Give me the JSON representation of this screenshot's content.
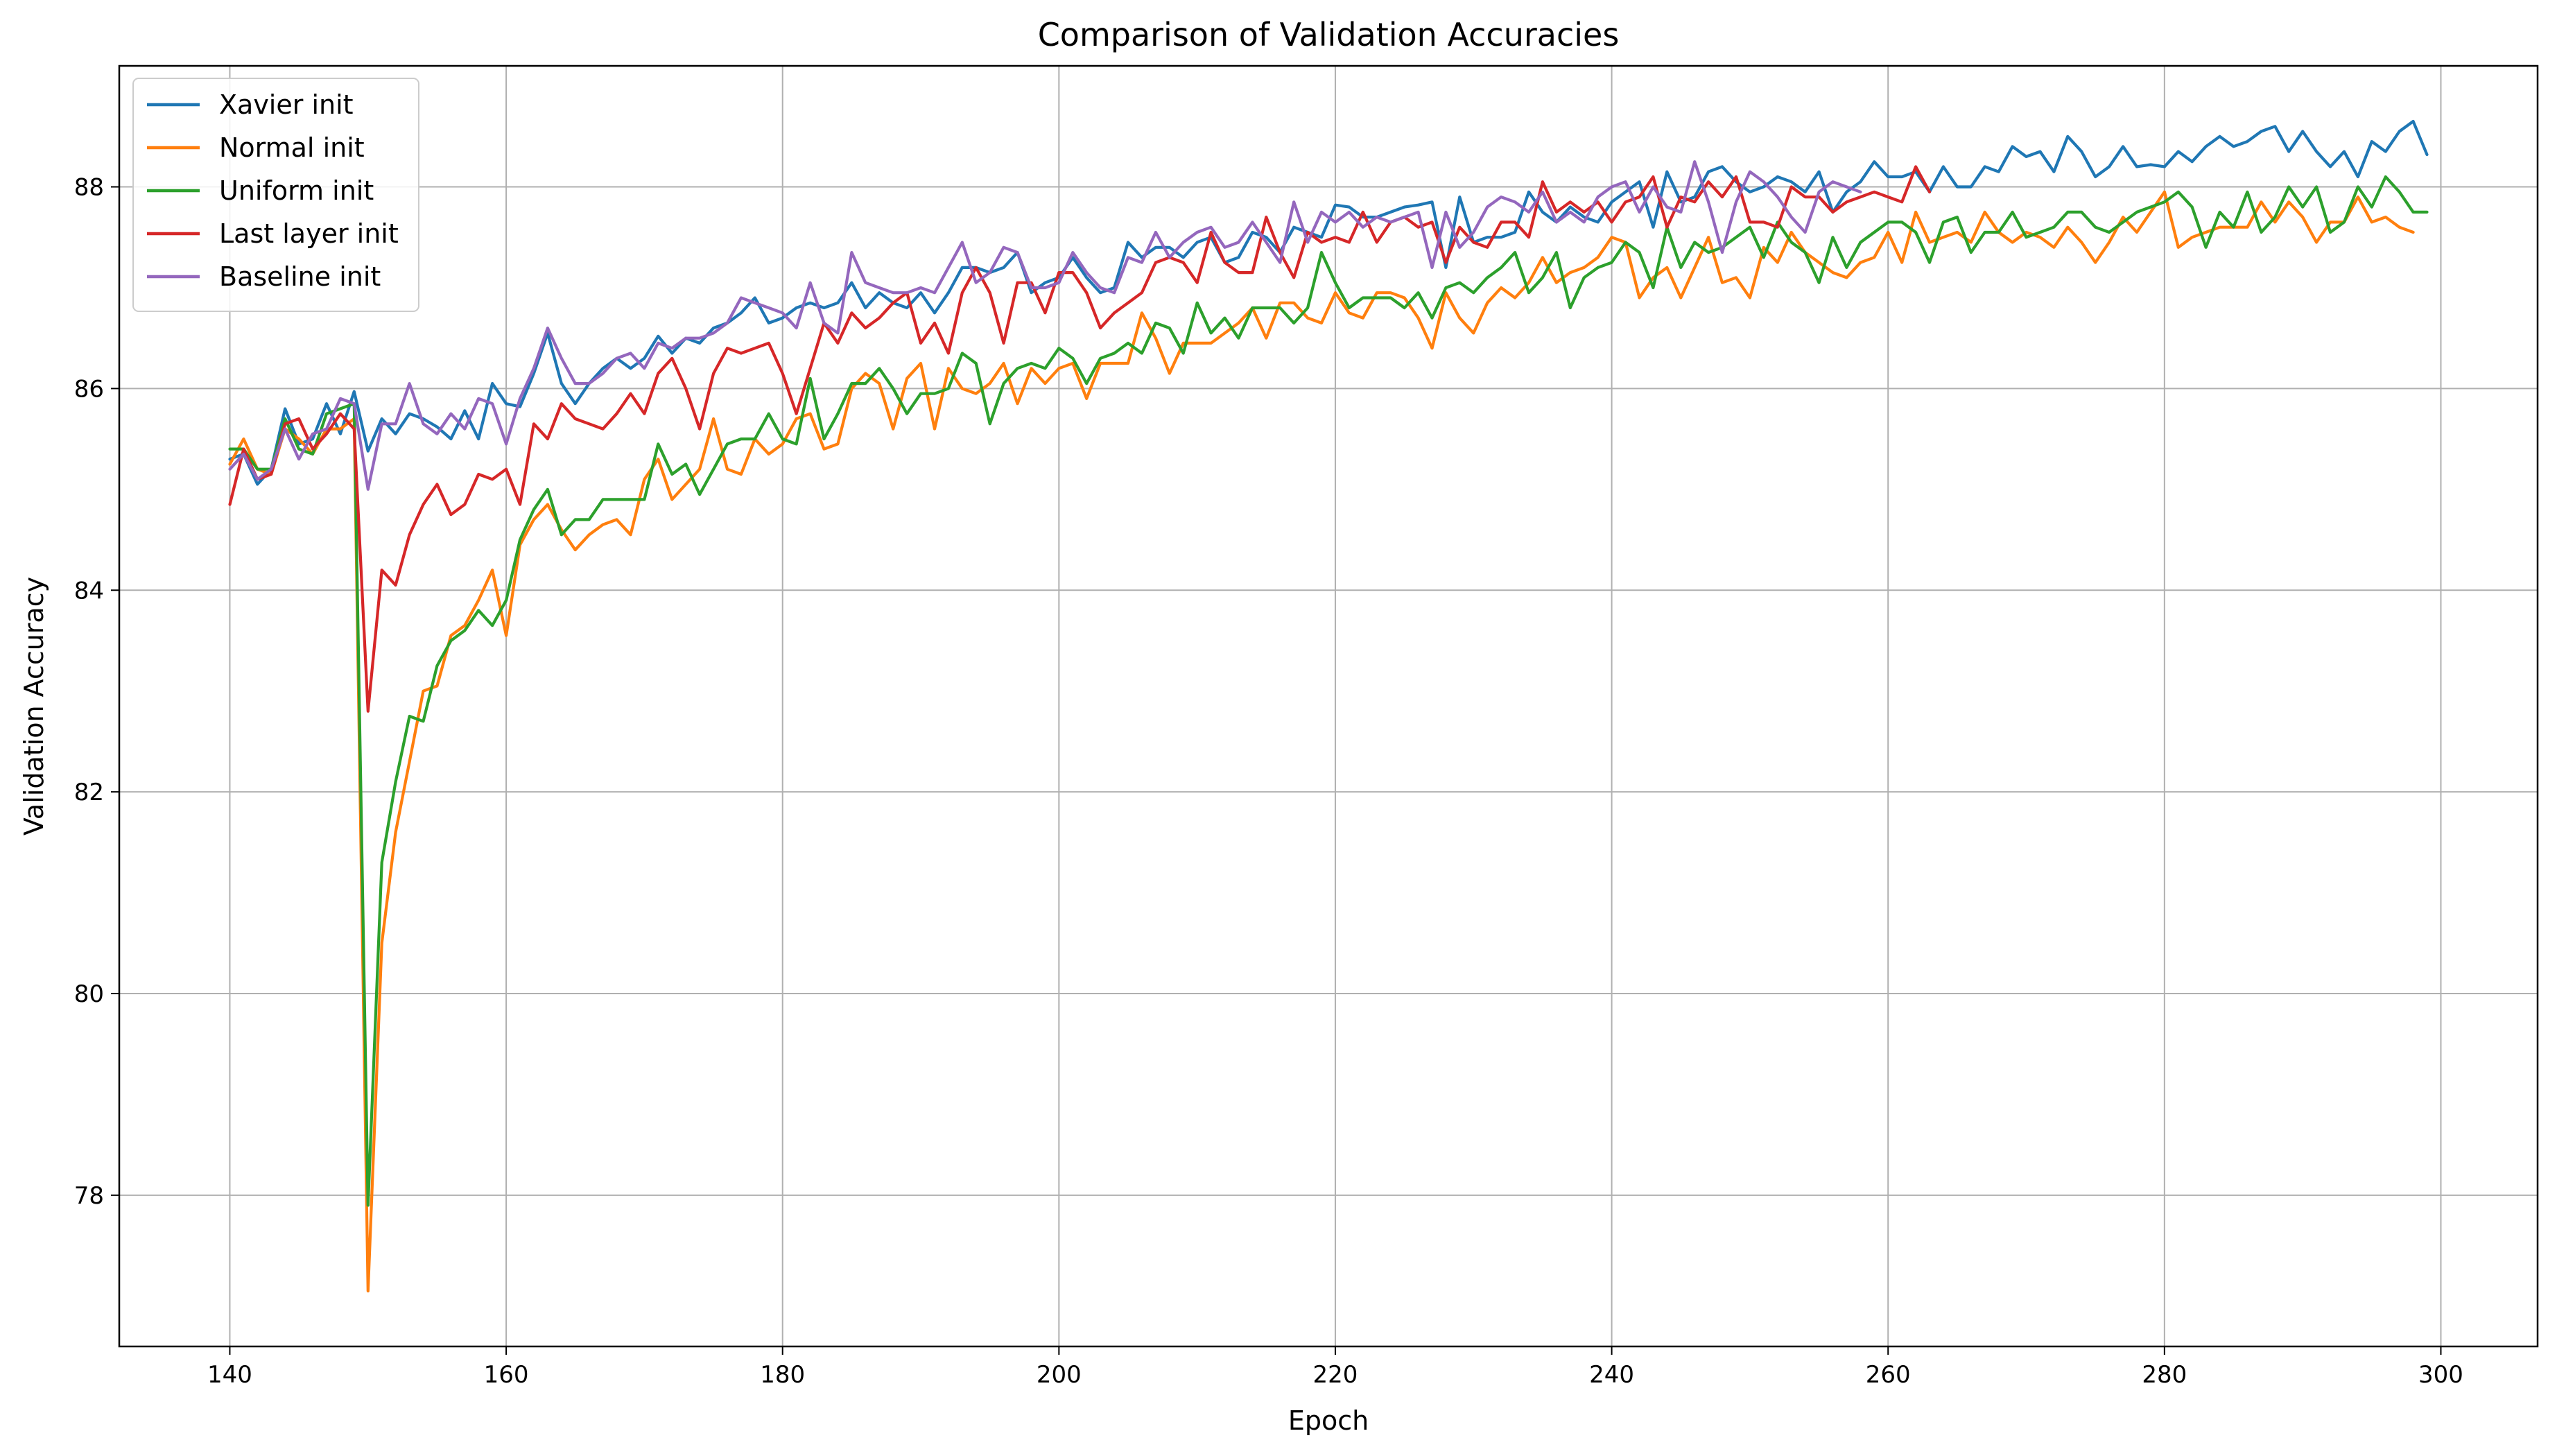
{
  "chart_data": {
    "type": "line",
    "title": "Comparison of Validation Accuracies",
    "xlabel": "Epoch",
    "ylabel": "Validation Accuracy",
    "xlim": [
      132,
      307
    ],
    "ylim": [
      76.5,
      89.2
    ],
    "xticks": [
      140,
      160,
      180,
      200,
      220,
      240,
      260,
      280,
      300
    ],
    "yticks": [
      78,
      80,
      82,
      84,
      86,
      88
    ],
    "grid": true,
    "legend_position": "top-left",
    "series": [
      {
        "name": "Xavier init",
        "color": "#1f77b4",
        "x_start": 140,
        "values": [
          85.3,
          85.35,
          85.05,
          85.2,
          85.8,
          85.45,
          85.5,
          85.85,
          85.55,
          85.97,
          85.38,
          85.7,
          85.55,
          85.75,
          85.7,
          85.62,
          85.5,
          85.78,
          85.5,
          86.05,
          85.85,
          85.82,
          86.15,
          86.55,
          86.05,
          85.85,
          86.05,
          86.2,
          86.3,
          86.2,
          86.3,
          86.52,
          86.35,
          86.5,
          86.45,
          86.6,
          86.65,
          86.75,
          86.9,
          86.65,
          86.7,
          86.8,
          86.85,
          86.8,
          86.85,
          87.05,
          86.8,
          86.95,
          86.85,
          86.8,
          86.95,
          86.75,
          86.95,
          87.2,
          87.2,
          87.15,
          87.2,
          87.35,
          86.95,
          87.05,
          87.1,
          87.3,
          87.1,
          86.95,
          87.0,
          87.45,
          87.3,
          87.4,
          87.4,
          87.3,
          87.45,
          87.5,
          87.25,
          87.3,
          87.55,
          87.5,
          87.35,
          87.6,
          87.55,
          87.5,
          87.82,
          87.8,
          87.7,
          87.7,
          87.75,
          87.8,
          87.82,
          87.85,
          87.2,
          87.9,
          87.45,
          87.5,
          87.5,
          87.55,
          87.95,
          87.75,
          87.65,
          87.8,
          87.7,
          87.65,
          87.85,
          87.95,
          88.05,
          87.6,
          88.15,
          87.85,
          87.9,
          88.15,
          88.2,
          88.05,
          87.95,
          88.0,
          88.1,
          88.05,
          87.95,
          88.15,
          87.75,
          87.95,
          88.05,
          88.25,
          88.1,
          88.1,
          88.15,
          87.95,
          88.2,
          88.0,
          88.0,
          88.2,
          88.15,
          88.4,
          88.3,
          88.35,
          88.15,
          88.5,
          88.35,
          88.1,
          88.2,
          88.4,
          88.2,
          88.22,
          88.2,
          88.35,
          88.25,
          88.4,
          88.5,
          88.4,
          88.45,
          88.55,
          88.6,
          88.35,
          88.55,
          88.35,
          88.2,
          88.35,
          88.1,
          88.45,
          88.35,
          88.55,
          88.65,
          88.32
        ]
      },
      {
        "name": "Normal init",
        "color": "#ff7f0e",
        "x_start": 140,
        "values": [
          85.25,
          85.5,
          85.2,
          85.15,
          85.6,
          85.5,
          85.35,
          85.6,
          85.6,
          85.7,
          77.05,
          80.5,
          81.6,
          82.3,
          83.0,
          83.05,
          83.55,
          83.65,
          83.9,
          84.2,
          83.55,
          84.45,
          84.7,
          84.85,
          84.6,
          84.4,
          84.55,
          84.65,
          84.7,
          84.55,
          85.1,
          85.3,
          84.9,
          85.05,
          85.2,
          85.7,
          85.2,
          85.15,
          85.5,
          85.35,
          85.45,
          85.7,
          85.75,
          85.4,
          85.45,
          86.0,
          86.15,
          86.05,
          85.6,
          86.1,
          86.25,
          85.6,
          86.2,
          86.0,
          85.95,
          86.05,
          86.25,
          85.85,
          86.2,
          86.05,
          86.2,
          86.25,
          85.9,
          86.25,
          86.25,
          86.25,
          86.75,
          86.5,
          86.15,
          86.45,
          86.45,
          86.45,
          86.55,
          86.65,
          86.8,
          86.5,
          86.85,
          86.85,
          86.7,
          86.65,
          86.95,
          86.75,
          86.7,
          86.95,
          86.95,
          86.9,
          86.7,
          86.4,
          86.95,
          86.7,
          86.55,
          86.85,
          87.0,
          86.9,
          87.05,
          87.3,
          87.05,
          87.15,
          87.2,
          87.3,
          87.5,
          87.45,
          86.9,
          87.1,
          87.2,
          86.9,
          87.2,
          87.5,
          87.05,
          87.1,
          86.9,
          87.4,
          87.25,
          87.55,
          87.35,
          87.25,
          87.15,
          87.1,
          87.25,
          87.3,
          87.55,
          87.25,
          87.75,
          87.45,
          87.5,
          87.55,
          87.45,
          87.75,
          87.55,
          87.45,
          87.55,
          87.5,
          87.4,
          87.6,
          87.45,
          87.25,
          87.45,
          87.7,
          87.55,
          87.75,
          87.95,
          87.4,
          87.5,
          87.55,
          87.6,
          87.6,
          87.6,
          87.85,
          87.65,
          87.85,
          87.7,
          87.45,
          87.65,
          87.65,
          87.9,
          87.65,
          87.7,
          87.6,
          87.55
        ]
      },
      {
        "name": "Uniform init",
        "color": "#2ca02c",
        "x_start": 140,
        "values": [
          85.4,
          85.4,
          85.2,
          85.2,
          85.7,
          85.4,
          85.35,
          85.75,
          85.8,
          85.85,
          77.9,
          81.3,
          82.1,
          82.75,
          82.7,
          83.25,
          83.5,
          83.6,
          83.8,
          83.65,
          83.9,
          84.5,
          84.8,
          85.0,
          84.55,
          84.7,
          84.7,
          84.9,
          84.9,
          84.9,
          84.9,
          85.45,
          85.15,
          85.25,
          84.95,
          85.2,
          85.45,
          85.5,
          85.5,
          85.75,
          85.5,
          85.45,
          86.1,
          85.5,
          85.75,
          86.05,
          86.05,
          86.2,
          86.0,
          85.75,
          85.95,
          85.95,
          86.0,
          86.35,
          86.25,
          85.65,
          86.05,
          86.2,
          86.25,
          86.2,
          86.4,
          86.3,
          86.05,
          86.3,
          86.35,
          86.45,
          86.35,
          86.65,
          86.6,
          86.35,
          86.85,
          86.55,
          86.7,
          86.5,
          86.8,
          86.8,
          86.8,
          86.65,
          86.8,
          87.35,
          87.05,
          86.8,
          86.9,
          86.9,
          86.9,
          86.8,
          86.95,
          86.7,
          87.0,
          87.05,
          86.95,
          87.1,
          87.2,
          87.35,
          86.95,
          87.1,
          87.35,
          86.8,
          87.1,
          87.2,
          87.25,
          87.45,
          87.35,
          87.0,
          87.6,
          87.2,
          87.45,
          87.35,
          87.4,
          87.5,
          87.6,
          87.3,
          87.65,
          87.45,
          87.35,
          87.05,
          87.5,
          87.2,
          87.45,
          87.55,
          87.65,
          87.65,
          87.55,
          87.25,
          87.65,
          87.7,
          87.35,
          87.55,
          87.55,
          87.75,
          87.5,
          87.55,
          87.6,
          87.75,
          87.75,
          87.6,
          87.55,
          87.65,
          87.75,
          87.8,
          87.85,
          87.95,
          87.8,
          87.4,
          87.75,
          87.6,
          87.95,
          87.55,
          87.7,
          88.0,
          87.8,
          88.0,
          87.55,
          87.65,
          88.0,
          87.8,
          88.1,
          87.95,
          87.75,
          87.75
        ]
      },
      {
        "name": "Last layer init",
        "color": "#d62728",
        "x_start": 140,
        "values": [
          84.85,
          85.4,
          85.1,
          85.15,
          85.65,
          85.7,
          85.4,
          85.55,
          85.75,
          85.6,
          82.8,
          84.2,
          84.05,
          84.55,
          84.85,
          85.05,
          84.75,
          84.85,
          85.15,
          85.1,
          85.2,
          84.85,
          85.65,
          85.5,
          85.85,
          85.7,
          85.65,
          85.6,
          85.75,
          85.95,
          85.75,
          86.15,
          86.3,
          86.0,
          85.6,
          86.15,
          86.4,
          86.35,
          86.4,
          86.45,
          86.15,
          85.75,
          86.2,
          86.65,
          86.45,
          86.75,
          86.6,
          86.7,
          86.85,
          86.95,
          86.45,
          86.65,
          86.35,
          86.95,
          87.2,
          86.95,
          86.45,
          87.05,
          87.05,
          86.75,
          87.15,
          87.15,
          86.95,
          86.6,
          86.75,
          86.85,
          86.95,
          87.25,
          87.3,
          87.25,
          87.05,
          87.55,
          87.25,
          87.15,
          87.15,
          87.7,
          87.35,
          87.1,
          87.55,
          87.45,
          87.5,
          87.45,
          87.75,
          87.45,
          87.65,
          87.7,
          87.6,
          87.65,
          87.25,
          87.6,
          87.45,
          87.4,
          87.65,
          87.65,
          87.5,
          88.05,
          87.75,
          87.85,
          87.75,
          87.85,
          87.65,
          87.85,
          87.9,
          88.1,
          87.6,
          87.9,
          87.85,
          88.05,
          87.9,
          88.1,
          87.65,
          87.65,
          87.6,
          88.0,
          87.9,
          87.9,
          87.75,
          87.85,
          87.9,
          87.95,
          87.9,
          87.85,
          88.2,
          87.95
        ]
      },
      {
        "name": "Baseline init",
        "color": "#9467bd",
        "x_start": 140,
        "values": [
          85.2,
          85.35,
          85.1,
          85.2,
          85.6,
          85.3,
          85.55,
          85.6,
          85.9,
          85.85,
          85.0,
          85.65,
          85.65,
          86.05,
          85.65,
          85.55,
          85.75,
          85.6,
          85.9,
          85.85,
          85.45,
          85.9,
          86.2,
          86.6,
          86.3,
          86.05,
          86.05,
          86.15,
          86.3,
          86.35,
          86.2,
          86.45,
          86.4,
          86.5,
          86.5,
          86.55,
          86.65,
          86.9,
          86.85,
          86.8,
          86.75,
          86.6,
          87.05,
          86.65,
          86.55,
          87.35,
          87.05,
          87.0,
          86.95,
          86.95,
          87.0,
          86.95,
          87.2,
          87.45,
          87.05,
          87.15,
          87.4,
          87.35,
          87.0,
          87.0,
          87.05,
          87.35,
          87.15,
          87.0,
          86.95,
          87.3,
          87.25,
          87.55,
          87.3,
          87.45,
          87.55,
          87.6,
          87.4,
          87.45,
          87.65,
          87.45,
          87.25,
          87.85,
          87.45,
          87.75,
          87.65,
          87.75,
          87.6,
          87.7,
          87.65,
          87.7,
          87.75,
          87.2,
          87.75,
          87.4,
          87.55,
          87.8,
          87.9,
          87.85,
          87.75,
          87.95,
          87.65,
          87.75,
          87.65,
          87.9,
          88.0,
          88.05,
          87.75,
          88.0,
          87.8,
          87.75,
          88.25,
          87.85,
          87.35,
          87.85,
          88.15,
          88.05,
          87.9,
          87.7,
          87.55,
          87.95,
          88.05,
          88.0,
          87.95
        ]
      }
    ]
  }
}
